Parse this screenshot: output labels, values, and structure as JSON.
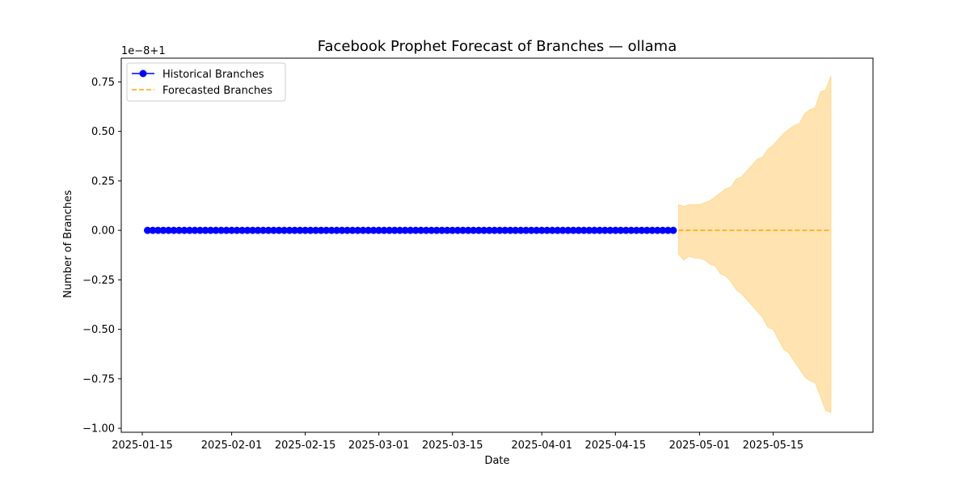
{
  "chart_data": {
    "type": "line",
    "title": "Facebook Prophet Forecast of Branches — ollama",
    "xlabel": "Date",
    "ylabel": "Number of Branches",
    "offset_text": "1e−8+1",
    "ylim": [
      -1.02,
      0.87
    ],
    "xlim": [
      "2025-01-11",
      "2025-06-03"
    ],
    "yticks": [
      -1.0,
      -0.75,
      -0.5,
      -0.25,
      0.0,
      0.25,
      0.5,
      0.75
    ],
    "ytick_labels": [
      "−1.00",
      "−0.75",
      "−0.50",
      "−0.25",
      "0.00",
      "0.25",
      "0.50",
      "0.75"
    ],
    "xticks": [
      "2025-01-15",
      "2025-02-01",
      "2025-02-15",
      "2025-03-01",
      "2025-03-15",
      "2025-04-01",
      "2025-04-15",
      "2025-05-01",
      "2025-05-15"
    ],
    "legend": {
      "position": "top-left",
      "entries": [
        "Historical Branches",
        "Forecasted Branches"
      ]
    },
    "colors": {
      "historical": "#0000ff",
      "forecast": "#ffa500",
      "band": "#ffa500"
    },
    "series": [
      {
        "name": "Historical Branches",
        "style": "line-marker",
        "x_start": "2025-01-16",
        "x_end": "2025-04-26",
        "value": 0.0
      },
      {
        "name": "Forecasted Branches",
        "style": "dashed",
        "x_start": "2025-04-27",
        "x_end": "2025-05-26",
        "value": 0.0
      }
    ],
    "uncertainty_band": {
      "x_start": "2025-04-27",
      "upper": [
        0.13,
        0.12,
        0.13,
        0.13,
        0.13,
        0.14,
        0.15,
        0.17,
        0.19,
        0.21,
        0.22,
        0.26,
        0.27,
        0.3,
        0.33,
        0.36,
        0.37,
        0.41,
        0.43,
        0.46,
        0.49,
        0.51,
        0.53,
        0.54,
        0.59,
        0.61,
        0.62,
        0.7,
        0.71,
        0.78
      ],
      "lower": [
        -0.12,
        -0.15,
        -0.13,
        -0.14,
        -0.14,
        -0.15,
        -0.17,
        -0.18,
        -0.22,
        -0.23,
        -0.26,
        -0.3,
        -0.32,
        -0.35,
        -0.38,
        -0.41,
        -0.44,
        -0.49,
        -0.5,
        -0.55,
        -0.6,
        -0.62,
        -0.66,
        -0.7,
        -0.74,
        -0.76,
        -0.77,
        -0.84,
        -0.91,
        -0.92
      ]
    }
  }
}
